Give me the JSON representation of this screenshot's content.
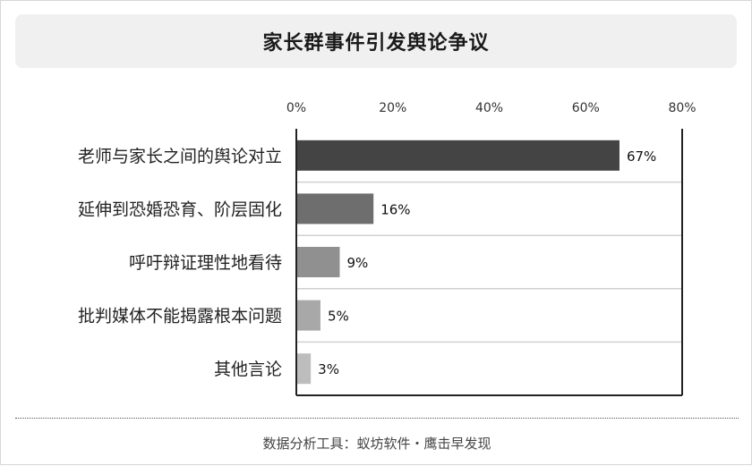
{
  "title": "家长群事件引发舆论争议",
  "footer": "数据分析工具：蚁坊软件・鹰击早发现",
  "chart_data": {
    "type": "bar",
    "orientation": "horizontal",
    "categories": [
      "老师与家长之间的舆论对立",
      "延伸到恐婚恐育、阶层固化",
      "呼吁辩证理性地看待",
      "批判媒体不能揭露根本问题",
      "其他言论"
    ],
    "values": [
      67,
      16,
      9,
      5,
      3
    ],
    "data_labels": [
      "67%",
      "16%",
      "9%",
      "5%",
      "3%"
    ],
    "xlim": [
      0,
      80
    ],
    "x_ticks": [
      0,
      20,
      40,
      60,
      80
    ],
    "x_tick_labels": [
      "0%",
      "20%",
      "40%",
      "60%",
      "80%"
    ],
    "axis_position": "top",
    "grid": true,
    "colors": [
      "#444444",
      "#6e6e6e",
      "#909090",
      "#a8a8a8",
      "#bdbdbd"
    ]
  }
}
